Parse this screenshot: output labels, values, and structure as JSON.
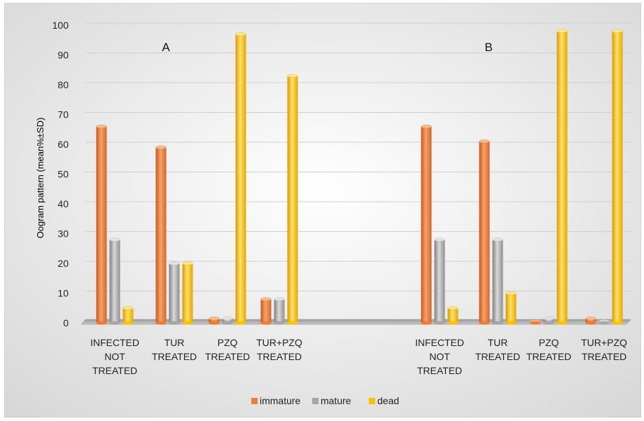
{
  "chart_data": {
    "type": "bar",
    "ylabel": "Oogram pattern (mean%±SD)",
    "ylim": [
      0,
      100
    ],
    "yticks": [
      0,
      10,
      20,
      30,
      40,
      50,
      60,
      70,
      80,
      90,
      100
    ],
    "grid": true,
    "legend_position": "bottom",
    "series": [
      {
        "name": "immature",
        "color": "#ed7d31"
      },
      {
        "name": "mature",
        "color": "#a5a5a5"
      },
      {
        "name": "dead",
        "color": "#ffc000"
      }
    ],
    "panels": [
      {
        "label": "A",
        "groups": [
          {
            "label": [
              "INFECTED",
              "NOT",
              "TREATED"
            ],
            "values": [
              66,
              28,
              5
            ]
          },
          {
            "label": [
              "TUR",
              "TREATED"
            ],
            "values": [
              59,
              20,
              20
            ]
          },
          {
            "label": [
              "PZQ",
              "TREATED"
            ],
            "values": [
              1.5,
              1.5,
              97
            ]
          },
          {
            "label": [
              "TUR+PZQ",
              "TREATED"
            ],
            "values": [
              8,
              8,
              83
            ]
          }
        ]
      },
      {
        "label": "B",
        "groups": [
          {
            "label": [
              "INFECTED",
              "NOT",
              "TREATED"
            ],
            "values": [
              66,
              28,
              5
            ]
          },
          {
            "label": [
              "TUR",
              "TREATED"
            ],
            "values": [
              61,
              28,
              10
            ]
          },
          {
            "label": [
              "PZQ",
              "TREATED"
            ],
            "values": [
              0.5,
              1.5,
              98
            ]
          },
          {
            "label": [
              "TUR+PZQ",
              "TREATED"
            ],
            "values": [
              1.5,
              0.5,
              98
            ]
          }
        ]
      }
    ]
  }
}
